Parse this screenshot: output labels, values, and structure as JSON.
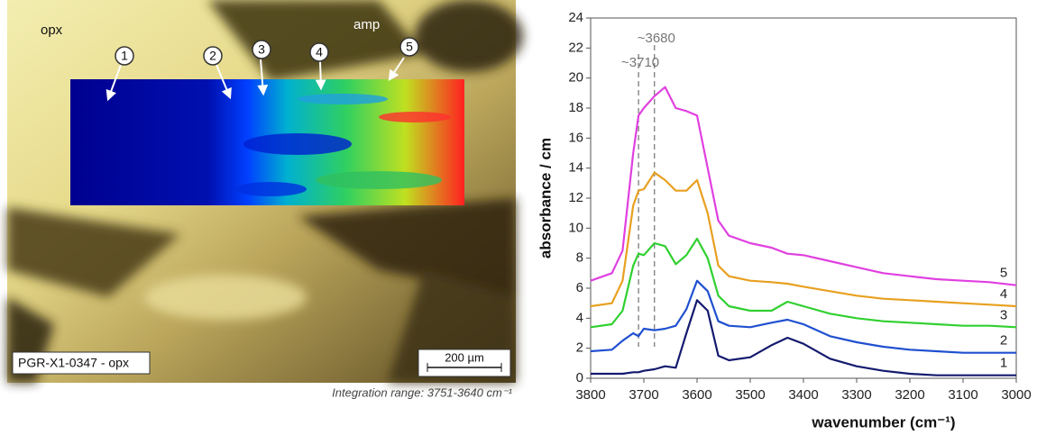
{
  "micrograph": {
    "phase_labels": [
      "opx",
      "amp"
    ],
    "point_labels": [
      "1",
      "2",
      "3",
      "4",
      "5"
    ],
    "sample": "PGR-X1-0347 - opx",
    "scale_bar": "200 µm",
    "caption": "Integration range: 3751-3640 cm⁻¹"
  },
  "chart_data": {
    "type": "line",
    "xlabel": "wavenumber (cm⁻¹)",
    "ylabel": "absorbance / cm",
    "xlim": [
      3800,
      3000
    ],
    "ylim": [
      0,
      24
    ],
    "xticks": [
      3800,
      3700,
      3600,
      3500,
      3400,
      3300,
      3200,
      3100,
      3000
    ],
    "yticks": [
      0,
      2,
      4,
      6,
      8,
      10,
      12,
      14,
      16,
      18,
      20,
      22,
      24
    ],
    "grid": false,
    "annotations": [
      {
        "text": "~3710",
        "x": 3710
      },
      {
        "text": "~3680",
        "x": 3680
      }
    ],
    "x": [
      3800,
      3760,
      3740,
      3720,
      3710,
      3700,
      3680,
      3660,
      3640,
      3620,
      3600,
      3580,
      3560,
      3540,
      3500,
      3460,
      3430,
      3400,
      3350,
      3300,
      3250,
      3200,
      3150,
      3100,
      3050,
      3000
    ],
    "series": [
      {
        "name": "1",
        "color": "#141a6e",
        "values": [
          0.3,
          0.3,
          0.3,
          0.4,
          0.4,
          0.5,
          0.6,
          0.8,
          0.7,
          3,
          5.2,
          4.5,
          1.5,
          1.2,
          1.4,
          2.2,
          2.7,
          2.3,
          1.3,
          0.8,
          0.5,
          0.3,
          0.2,
          0.2,
          0.2,
          0.2
        ]
      },
      {
        "name": "2",
        "color": "#2050d0",
        "values": [
          1.8,
          1.9,
          2.5,
          3,
          2.8,
          3.3,
          3.2,
          3.3,
          3.5,
          4.6,
          6.5,
          5.8,
          3.8,
          3.5,
          3.4,
          3.7,
          3.9,
          3.6,
          2.8,
          2.4,
          2.1,
          1.9,
          1.8,
          1.7,
          1.7,
          1.7
        ]
      },
      {
        "name": "3",
        "color": "#30d030",
        "values": [
          3.4,
          3.6,
          4.5,
          7.5,
          8.3,
          8.2,
          9,
          8.8,
          7.6,
          8.2,
          9.3,
          8,
          5.5,
          4.8,
          4.5,
          4.5,
          5.1,
          4.8,
          4.3,
          4,
          3.8,
          3.7,
          3.6,
          3.5,
          3.5,
          3.4
        ]
      },
      {
        "name": "4",
        "color": "#e8a020",
        "values": [
          4.8,
          5,
          6.5,
          11.5,
          12.5,
          12.6,
          13.7,
          13.2,
          12.5,
          12.5,
          13.2,
          11,
          7.5,
          6.8,
          6.5,
          6.4,
          6.3,
          6.1,
          5.8,
          5.5,
          5.3,
          5.2,
          5.1,
          5,
          4.9,
          4.8
        ]
      },
      {
        "name": "5",
        "color": "#e040e0",
        "values": [
          6.5,
          7,
          8.5,
          15,
          17.5,
          18,
          18.8,
          19.4,
          18,
          17.8,
          17.5,
          14,
          10.5,
          9.5,
          9,
          8.7,
          8.3,
          8.2,
          7.8,
          7.4,
          7,
          6.8,
          6.6,
          6.5,
          6.4,
          6.2
        ]
      }
    ]
  }
}
